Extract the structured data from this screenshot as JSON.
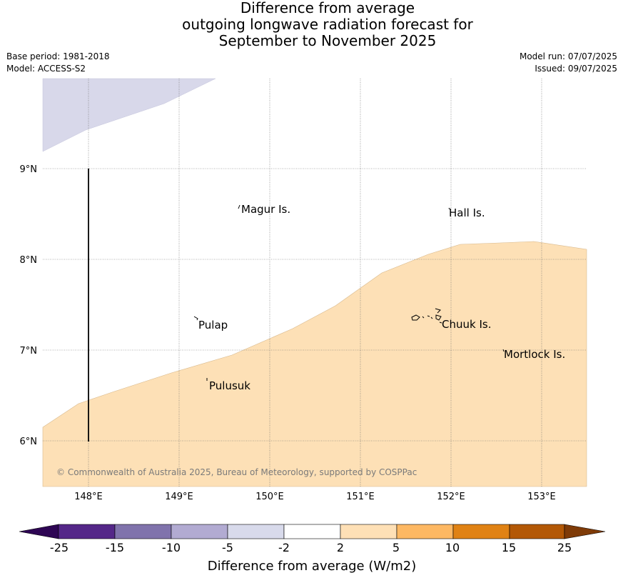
{
  "title": {
    "line1": "Difference from average",
    "line2": "outgoing longwave radiation forecast for",
    "line3": "September to November 2025"
  },
  "meta": {
    "base_period": "Base period: 1981-2018",
    "model": "Model: ACCESS-S2",
    "model_run": "Model run: 07/07/2025",
    "issued": "Issued: 09/07/2025"
  },
  "map": {
    "lat_labels": [
      "9°N",
      "8°N",
      "7°N",
      "6°N"
    ],
    "lon_labels": [
      "148°E",
      "149°E",
      "150°E",
      "151°E",
      "152°E",
      "153°E"
    ],
    "places": [
      {
        "name": "Magur Is."
      },
      {
        "name": "Hall Is."
      },
      {
        "name": "Pulap"
      },
      {
        "name": "Chuuk Is."
      },
      {
        "name": "Mortlock Is."
      },
      {
        "name": "Pulusuk"
      }
    ],
    "copyright": "© Commonwealth of Australia 2025, Bureau of Meteorology, supported by COSPPac",
    "anomaly_colors": {
      "negative_2_to_5": "#d8d8ea",
      "positive_2_to_5": "#fde0b6"
    }
  },
  "colorbar": {
    "ticks": [
      "-25",
      "-15",
      "-10",
      "-5",
      "-2",
      "2",
      "5",
      "10",
      "15",
      "25"
    ],
    "colors": [
      "#2e0654",
      "#542788",
      "#8073ac",
      "#b2abd2",
      "#d8daeb",
      "#ffffff",
      "#fee0b6",
      "#fdb863",
      "#e08214",
      "#b35806",
      "#7f3b08"
    ],
    "label": "Difference from average (W/m2)"
  }
}
